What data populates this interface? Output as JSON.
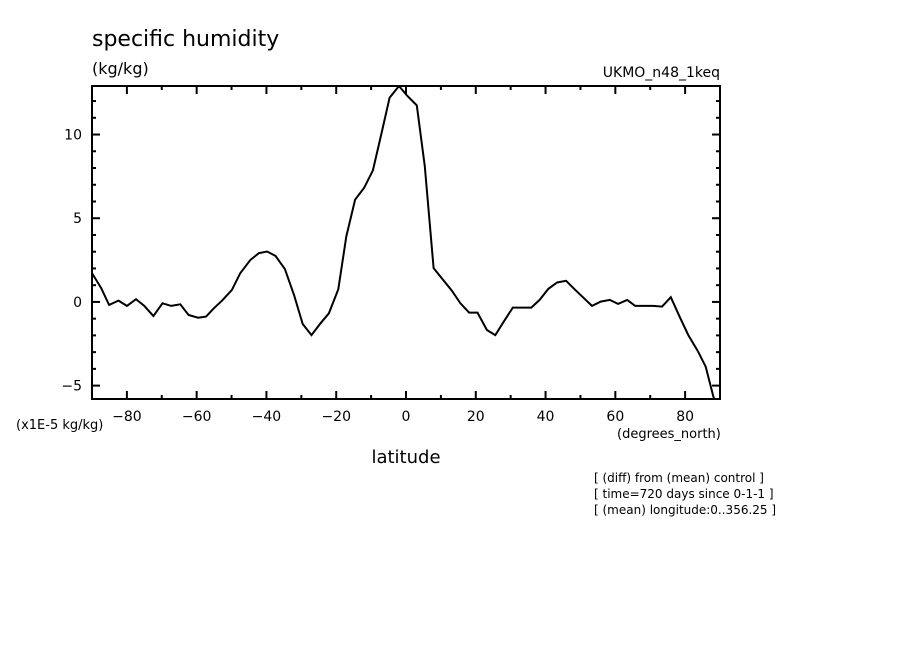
{
  "chart_data": {
    "type": "line",
    "title": "specific humidity",
    "units": "(kg/kg)",
    "dataset": "UKMO_n48_1keq",
    "ylabel_scale": "(x1E-5 kg/kg)",
    "xunits": "(degrees_north)",
    "xlabel": "latitude",
    "xlim": [
      -90,
      90
    ],
    "ylim": [
      -5.8,
      12.9
    ],
    "xticks": [
      -80,
      -60,
      -40,
      -20,
      0,
      20,
      40,
      60,
      80
    ],
    "yticks": [
      -5,
      0,
      5,
      10
    ],
    "grid": false,
    "series": [
      {
        "name": "specific humidity",
        "x": [
          -90,
          -87.4,
          -85.1,
          -82.4,
          -80,
          -77.4,
          -75,
          -72.4,
          -69.8,
          -67.3,
          -64.7,
          -62.3,
          -59.6,
          -57.3,
          -55.1,
          -52.7,
          -49.9,
          -47.5,
          -44.6,
          -42.2,
          -39.8,
          -37.4,
          -34.7,
          -32.1,
          -29.6,
          -27.1,
          -24.5,
          -22.1,
          -19.4,
          -17.1,
          -14.6,
          -12.0,
          -9.5,
          -7.0,
          -4.7,
          -2.0,
          0.4,
          3.1,
          5.4,
          7.9,
          10.5,
          13.1,
          15.6,
          18.1,
          20.5,
          23.2,
          25.6,
          28.0,
          30.6,
          33.2,
          35.9,
          38.3,
          40.8,
          43.3,
          45.9,
          48.3,
          50.7,
          53.3,
          55.8,
          58.4,
          60.8,
          63.4,
          65.7,
          68.4,
          70.8,
          73.4,
          75.9,
          78.5,
          80.9,
          83.6,
          85.9,
          88.1,
          90
        ],
        "values": [
          1.72,
          0.83,
          -0.18,
          0.08,
          -0.24,
          0.16,
          -0.24,
          -0.84,
          -0.08,
          -0.24,
          -0.14,
          -0.78,
          -0.94,
          -0.88,
          -0.38,
          0.08,
          0.72,
          1.72,
          2.51,
          2.91,
          3.01,
          2.75,
          1.96,
          0.42,
          -1.32,
          -1.98,
          -1.28,
          -0.68,
          0.76,
          3.91,
          6.11,
          6.81,
          7.86,
          10.1,
          12.2,
          12.9,
          12.3,
          11.74,
          8.1,
          2.02,
          1.36,
          0.68,
          -0.08,
          -0.64,
          -0.64,
          -1.68,
          -1.98,
          -1.18,
          -0.34,
          -0.34,
          -0.34,
          0.12,
          0.78,
          1.16,
          1.26,
          0.76,
          0.28,
          -0.24,
          0.02,
          0.12,
          -0.12,
          0.12,
          -0.24,
          -0.24,
          -0.24,
          -0.28,
          0.28,
          -0.92,
          -1.98,
          -2.92,
          -3.87,
          -5.67,
          -6.4
        ]
      }
    ],
    "annotations": [
      "[ (diff) from (mean) control ]",
      "[ time=720 days since 0-1-1 ]",
      "[ (mean) longitude:0..356.25 ]"
    ]
  }
}
